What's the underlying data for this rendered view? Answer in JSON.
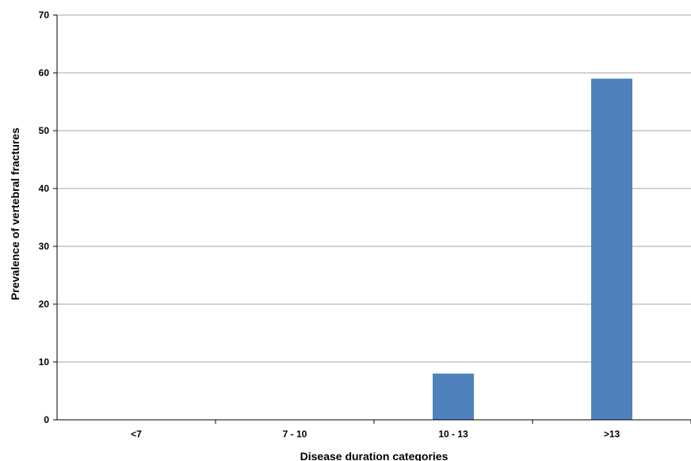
{
  "chart_data": {
    "type": "bar",
    "categories": [
      "<7",
      "7 - 10",
      "10 - 13",
      ">13"
    ],
    "values": [
      0,
      0,
      8,
      59
    ],
    "title": "",
    "xlabel": "Disease duration categories",
    "ylabel": "Prevalence of vertebral fractures",
    "ylim": [
      0,
      70
    ],
    "yticks": [
      0,
      10,
      20,
      30,
      40,
      50,
      60,
      70
    ],
    "grid": true,
    "bar_color": "#4f81bd"
  }
}
